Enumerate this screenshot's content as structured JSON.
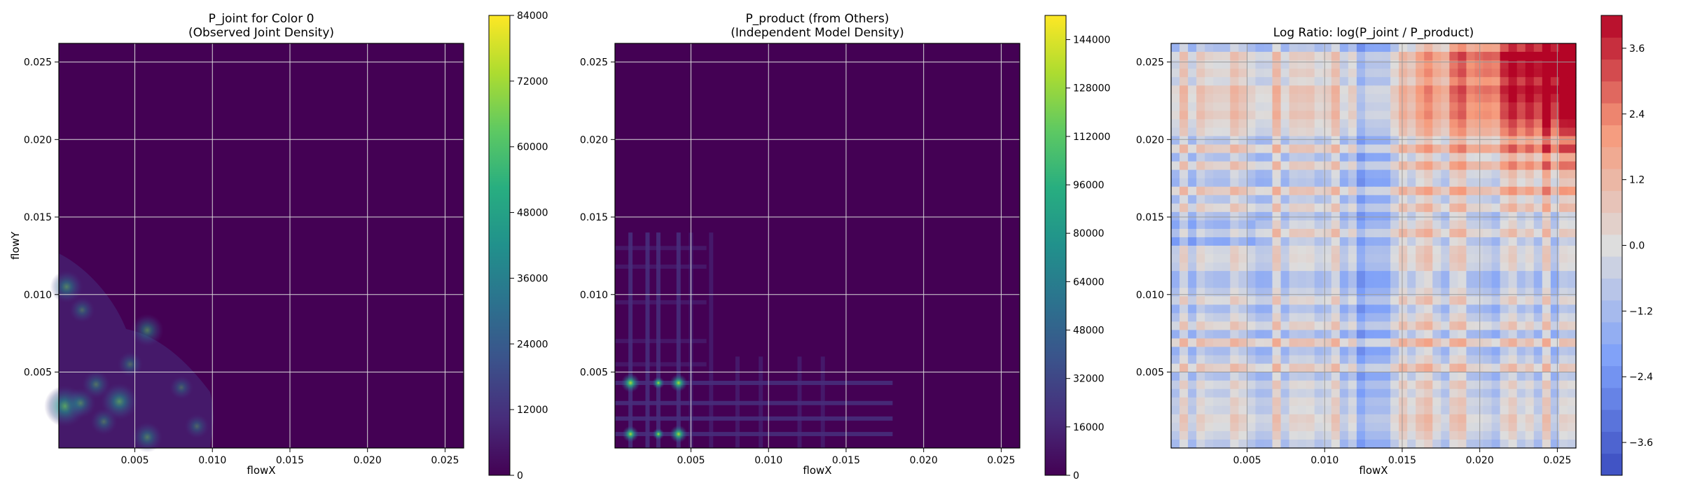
{
  "chart_data": [
    {
      "type": "heatmap",
      "title_line1": "P_joint for Color 0",
      "title_line2": "(Observed Joint Density)",
      "xlabel": "flowX",
      "ylabel": "flowY",
      "xlim": [
        0.0001,
        0.0262
      ],
      "ylim": [
        0.0001,
        0.0262
      ],
      "xticks": [
        "0.005",
        "0.010",
        "0.015",
        "0.020",
        "0.025"
      ],
      "yticks": [
        "0.005",
        "0.010",
        "0.015",
        "0.020",
        "0.025"
      ],
      "xtick_values": [
        0.005,
        0.01,
        0.015,
        0.02,
        0.025
      ],
      "ytick_values": [
        0.005,
        0.01,
        0.015,
        0.02,
        0.025
      ],
      "grid": true,
      "colormap": "viridis",
      "colorbar": {
        "min": 0,
        "max": 84000,
        "ticks": [
          "0",
          "12000",
          "24000",
          "36000",
          "48000",
          "60000",
          "72000",
          "84000"
        ],
        "tick_values": [
          0,
          12000,
          24000,
          36000,
          48000,
          60000,
          72000,
          84000
        ]
      },
      "hotspots": [
        {
          "x": 0.0005,
          "y": 0.0028,
          "value": 60000
        },
        {
          "x": 0.0006,
          "y": 0.0105,
          "value": 36000
        },
        {
          "x": 0.0015,
          "y": 0.003,
          "value": 30000
        },
        {
          "x": 0.0025,
          "y": 0.0042,
          "value": 24000
        },
        {
          "x": 0.004,
          "y": 0.0031,
          "value": 48000
        },
        {
          "x": 0.0058,
          "y": 0.0077,
          "value": 36000
        },
        {
          "x": 0.0058,
          "y": 0.0008,
          "value": 30000
        },
        {
          "x": 0.003,
          "y": 0.0018,
          "value": 20000
        },
        {
          "x": 0.0016,
          "y": 0.009,
          "value": 16000
        },
        {
          "x": 0.0047,
          "y": 0.0055,
          "value": 16000
        },
        {
          "x": 0.008,
          "y": 0.004,
          "value": 12000
        },
        {
          "x": 0.009,
          "y": 0.0015,
          "value": 14000
        }
      ]
    },
    {
      "type": "heatmap",
      "title_line1": "P_product (from Others)",
      "title_line2": "(Independent Model Density)",
      "xlabel": "flowX",
      "ylabel": "",
      "xlim": [
        0.0001,
        0.0262
      ],
      "ylim": [
        0.0001,
        0.0262
      ],
      "xticks": [
        "0.005",
        "0.010",
        "0.015",
        "0.020",
        "0.025"
      ],
      "yticks": [
        "0.005",
        "0.010",
        "0.015",
        "0.020",
        "0.025"
      ],
      "xtick_values": [
        0.005,
        0.01,
        0.015,
        0.02,
        0.025
      ],
      "ytick_values": [
        0.005,
        0.01,
        0.015,
        0.02,
        0.025
      ],
      "grid": true,
      "colormap": "viridis",
      "colorbar": {
        "min": 0,
        "max": 152000,
        "ticks": [
          "0",
          "16000",
          "32000",
          "48000",
          "64000",
          "80000",
          "96000",
          "112000",
          "128000",
          "144000"
        ],
        "tick_values": [
          0,
          16000,
          32000,
          48000,
          64000,
          80000,
          96000,
          112000,
          128000,
          144000
        ]
      },
      "hotspots": [
        {
          "x": 0.0011,
          "y": 0.0043,
          "value": 144000
        },
        {
          "x": 0.0042,
          "y": 0.0043,
          "value": 128000
        },
        {
          "x": 0.0011,
          "y": 0.001,
          "value": 112000
        },
        {
          "x": 0.0042,
          "y": 0.001,
          "value": 128000
        },
        {
          "x": 0.0029,
          "y": 0.0043,
          "value": 64000
        },
        {
          "x": 0.0029,
          "y": 0.001,
          "value": 56000
        }
      ]
    },
    {
      "type": "heatmap",
      "title_line1": "Log Ratio: log(P_joint / P_product)",
      "title_line2": "",
      "xlabel": "flowX",
      "ylabel": "",
      "xlim": [
        0.0001,
        0.0262
      ],
      "ylim": [
        0.0001,
        0.0262
      ],
      "xticks": [
        "0.005",
        "0.010",
        "0.015",
        "0.020",
        "0.025"
      ],
      "yticks": [
        "0.005",
        "0.010",
        "0.015",
        "0.020",
        "0.025"
      ],
      "xtick_values": [
        0.005,
        0.01,
        0.015,
        0.02,
        0.025
      ],
      "ytick_values": [
        0.005,
        0.01,
        0.015,
        0.02,
        0.025
      ],
      "grid": true,
      "colormap": "coolwarm",
      "colorbar": {
        "min": -4.2,
        "max": 4.2,
        "ticks": [
          "−3.6",
          "−2.4",
          "−1.2",
          "0.0",
          "1.2",
          "2.4",
          "3.6"
        ],
        "tick_values": [
          -3.6,
          -2.4,
          -1.2,
          0.0,
          1.2,
          2.4,
          3.6
        ]
      }
    }
  ]
}
